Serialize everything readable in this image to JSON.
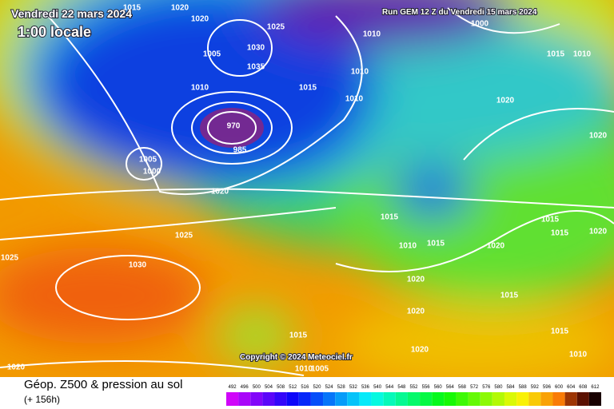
{
  "header": {
    "date": "Vendredi 22 mars 2024",
    "time": "1:00 locale",
    "run": "Run GEM 12 Z du Vendredi 15 mars 2024"
  },
  "copyright": "Copyright © 2024 Meteociel.fr",
  "footer": {
    "title": "Géop. Z500 & pression au sol",
    "lead": "(+ 156h)"
  },
  "colorbar": {
    "labels": [
      492,
      496,
      500,
      504,
      508,
      512,
      516,
      520,
      524,
      528,
      532,
      536,
      540,
      544,
      548,
      552,
      556,
      560,
      564,
      568,
      572,
      576,
      580,
      584,
      588,
      592,
      596,
      600,
      604,
      608,
      612
    ]
  },
  "isobar_labels": [
    1015,
    1020,
    1020,
    1025,
    1030,
    1005,
    1035,
    1010,
    1010,
    1010,
    1015,
    1010,
    985,
    970,
    1005,
    1000,
    1020,
    1025,
    1025,
    1030,
    1015,
    1010,
    1015,
    1020,
    1020,
    1020,
    1015,
    1015,
    1020,
    1010,
    1020,
    1010,
    1005,
    1020,
    1020,
    1015,
    1010,
    1000,
    1015,
    1015,
    1020,
    1015
  ]
}
